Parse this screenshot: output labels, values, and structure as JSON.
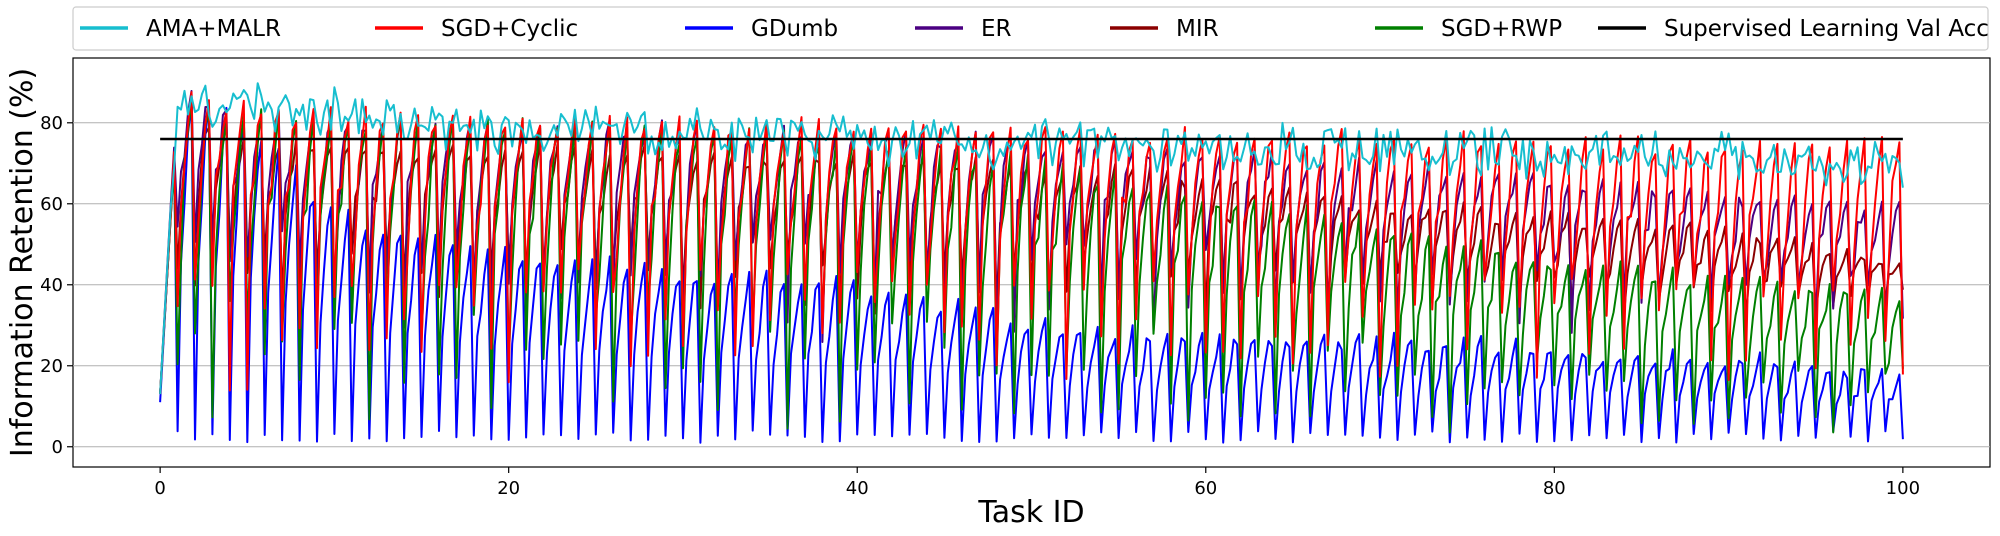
{
  "chart_data": {
    "type": "line",
    "xlabel": "Task ID",
    "ylabel": "Information Retention (%)",
    "xlim": [
      -5,
      105
    ],
    "ylim": [
      -5,
      96
    ],
    "xticks": [
      0,
      20,
      40,
      60,
      80,
      100
    ],
    "yticks": [
      0,
      20,
      40,
      60,
      80
    ],
    "grid": "horizontal",
    "legend_position": "top",
    "reference_line": {
      "name": "Supervised Learning Val Acc",
      "value": 76,
      "color": "#000000"
    },
    "series": [
      {
        "name": "AMA+MALR",
        "color": "#17becf",
        "x": [
          0,
          1,
          5,
          10,
          20,
          30,
          40,
          50,
          60,
          70,
          80,
          90,
          100
        ],
        "values": [
          13,
          89,
          87,
          86,
          83,
          81,
          80,
          79,
          78,
          77,
          76,
          75,
          74
        ],
        "cycle_length": 1,
        "cycle_dip": [
          4,
          6
        ]
      },
      {
        "name": "SGD+Cyclic",
        "color": "#ff0000",
        "x": [
          0,
          1,
          5,
          10,
          20,
          30,
          40,
          50,
          60,
          70,
          80,
          90,
          100
        ],
        "values": [
          13,
          86,
          83,
          82,
          81,
          80,
          79,
          78,
          77,
          76,
          75,
          74,
          74
        ],
        "cycle_length": 1,
        "cycle_dip": [
          12,
          25
        ]
      },
      {
        "name": "GDumb",
        "color": "#0000ff",
        "x": [
          0,
          1,
          5,
          10,
          20,
          30,
          40,
          50,
          60,
          70,
          80,
          90,
          100
        ],
        "values": [
          11,
          88,
          80,
          57,
          47,
          43,
          40,
          30,
          27,
          26,
          24,
          22,
          18
        ],
        "cycle_length": 1,
        "cycle_dip": [
          0,
          0
        ]
      },
      {
        "name": "ER",
        "color": "#4b0082",
        "x": [
          0,
          1,
          5,
          10,
          20,
          30,
          40,
          50,
          60,
          70,
          80,
          90,
          100
        ],
        "values": [
          13,
          90,
          82,
          80,
          79,
          78,
          77,
          75,
          72,
          69,
          66,
          62,
          58
        ],
        "cycle_length": 1,
        "cycle_dip": [
          25,
          38
        ]
      },
      {
        "name": "MIR",
        "color": "#8b0000",
        "x": [
          0,
          1,
          5,
          10,
          20,
          30,
          40,
          50,
          60,
          70,
          80,
          90,
          100
        ],
        "values": [
          13,
          85,
          75,
          74,
          73,
          72,
          71,
          69,
          66,
          60,
          56,
          52,
          46
        ],
        "cycle_length": 1,
        "cycle_dip": [
          30,
          38
        ]
      },
      {
        "name": "SGD+RWP",
        "color": "#008000",
        "x": [
          0,
          1,
          5,
          10,
          20,
          30,
          40,
          50,
          60,
          70,
          80,
          90,
          100
        ],
        "values": [
          13,
          85,
          81,
          80,
          79,
          77,
          75,
          70,
          62,
          54,
          46,
          40,
          38
        ],
        "cycle_length": 1,
        "cycle_dip": [
          2,
          8
        ]
      }
    ]
  }
}
